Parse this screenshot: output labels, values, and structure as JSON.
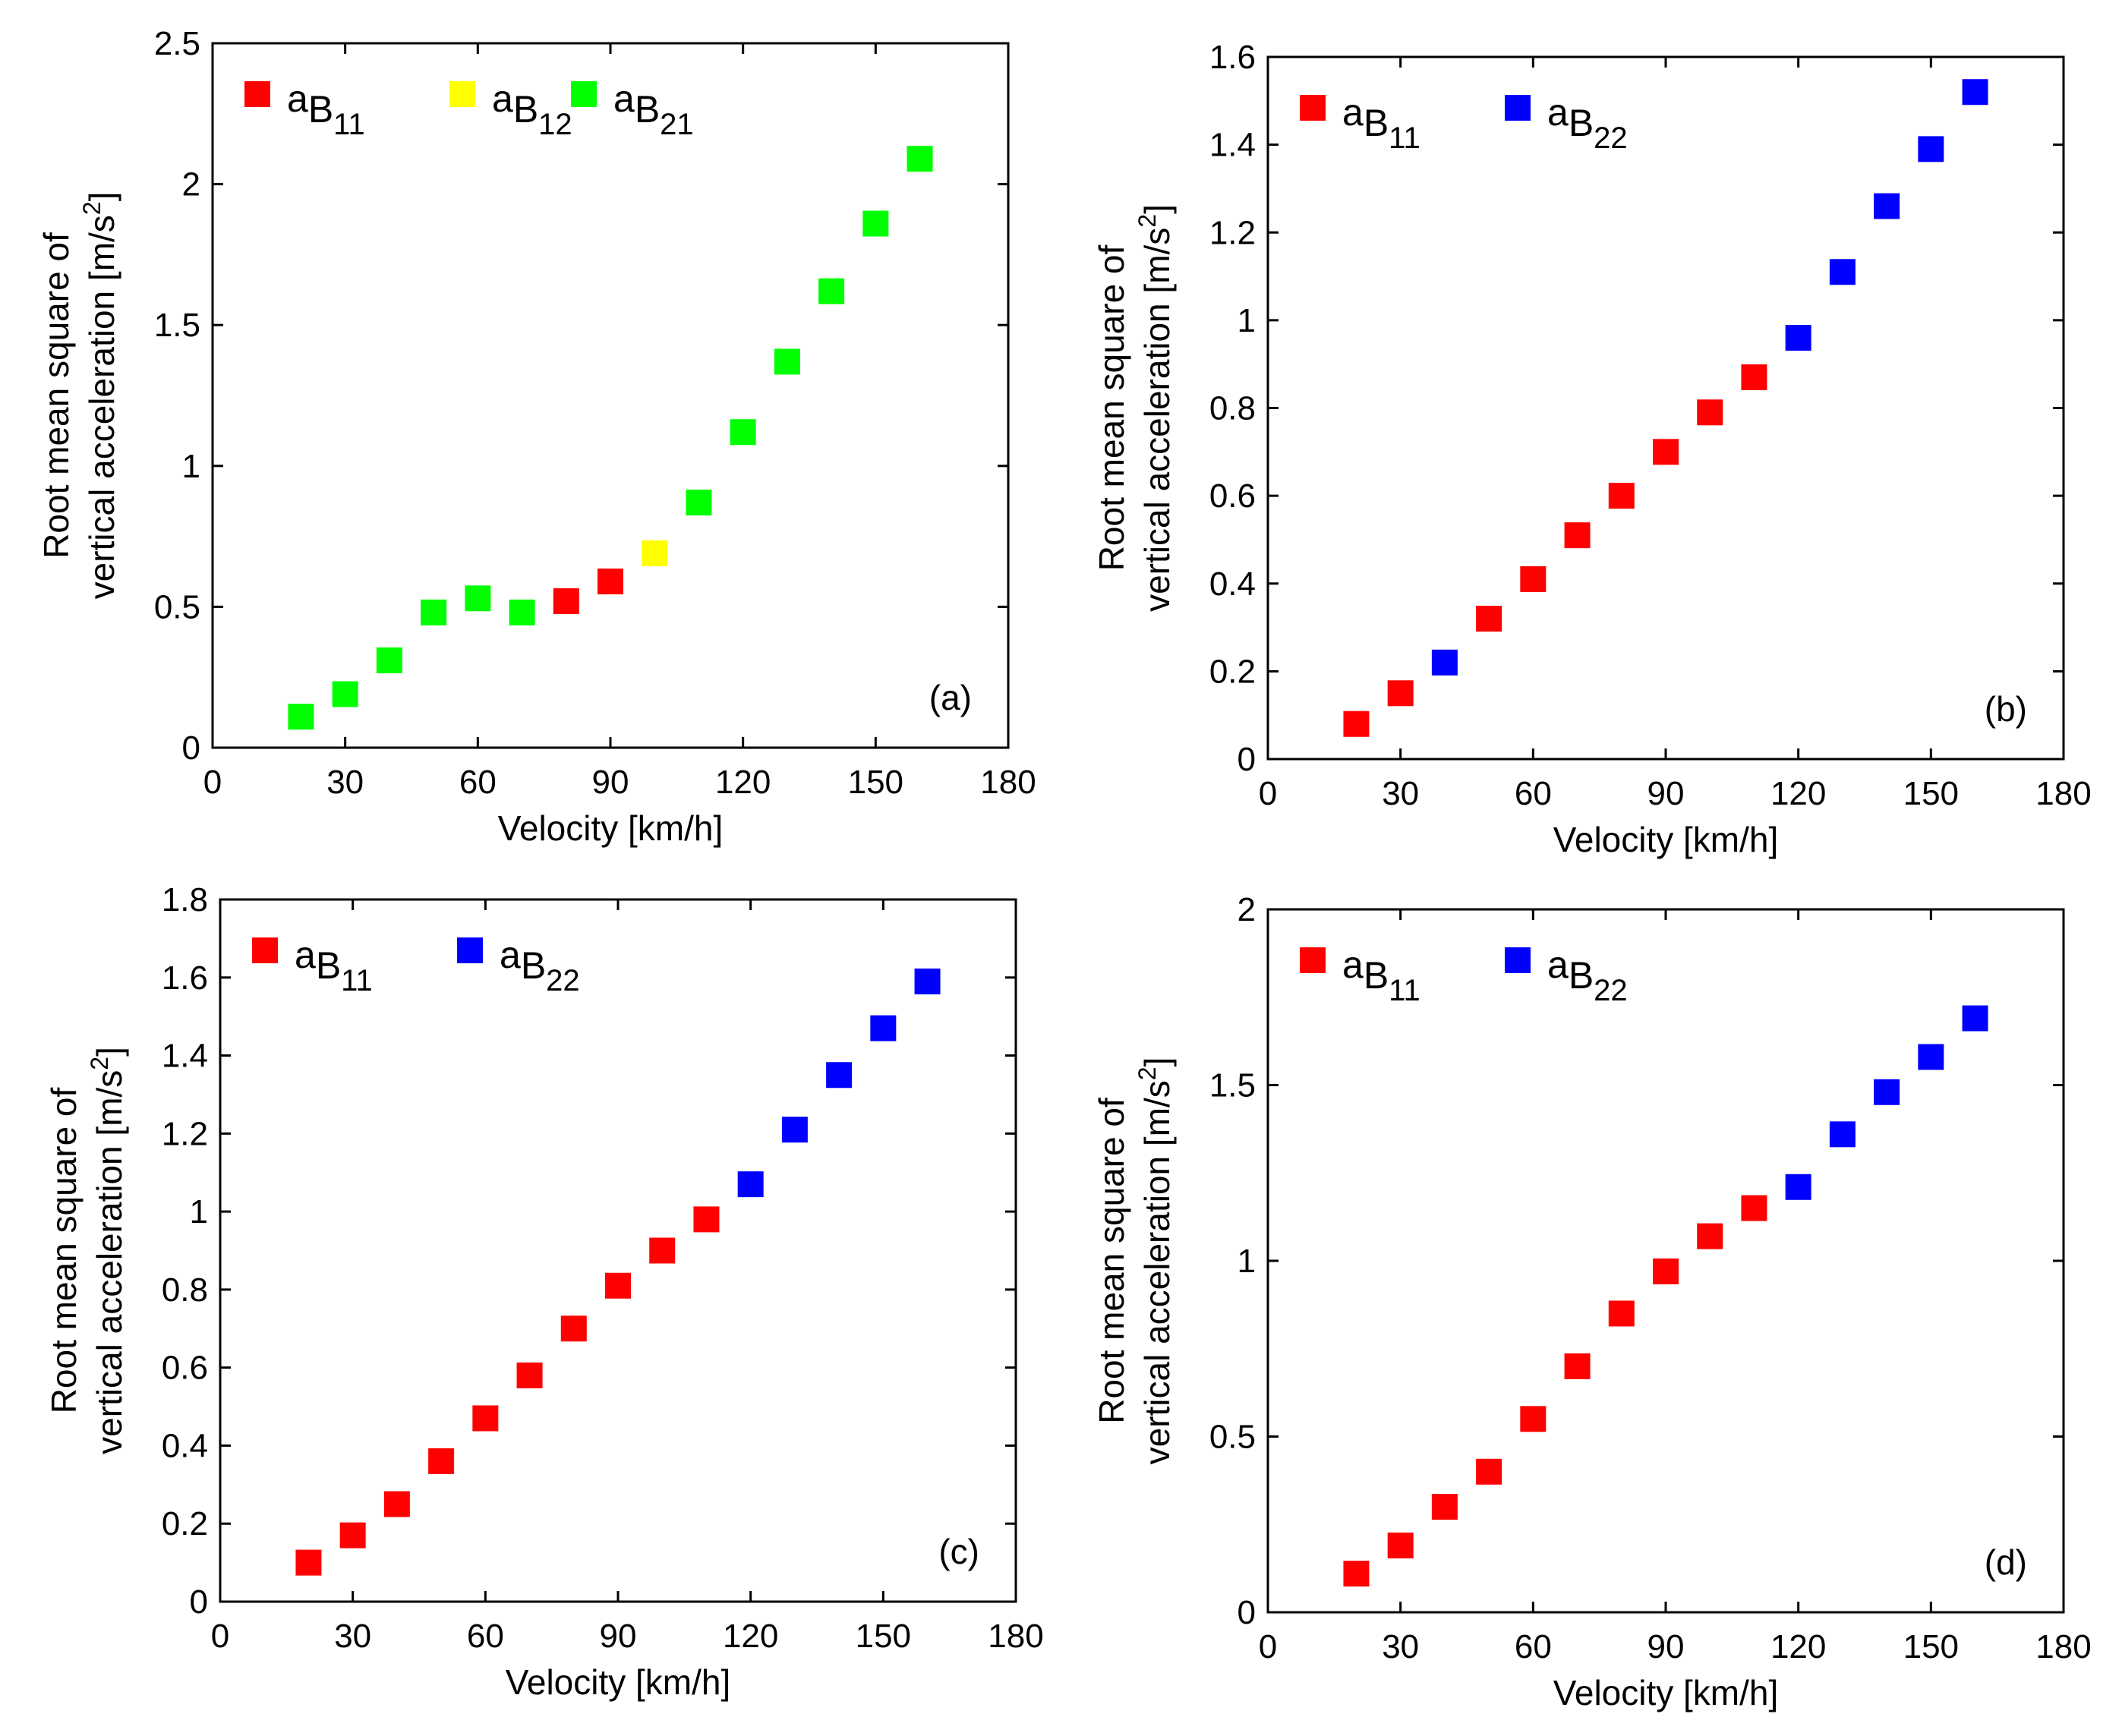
{
  "figure_title": "",
  "colors": {
    "aB11": "#ff0000",
    "aB12": "#ffff00",
    "aB21": "#00ff00",
    "aB22": "#0000ff",
    "axis": "#000000"
  },
  "chart_data": [
    {
      "type": "scatter",
      "panel_label": "(a)",
      "xlabel": "Velocity [km/h]",
      "ylabel_line1": "Root mean square of",
      "ylabel_line2": "vertical acceleration [m/s",
      "ylabel_exp": "2",
      "ylabel_end": "]",
      "xlim": [
        0,
        180
      ],
      "ylim": [
        0,
        2.5
      ],
      "xticks": [
        0,
        30,
        60,
        90,
        120,
        150,
        180
      ],
      "yticks": [
        0,
        0.5,
        1,
        1.5,
        2,
        2.5
      ],
      "ytick_labels": [
        "0",
        "0.5",
        "1",
        "1.5",
        "2",
        "2.5"
      ],
      "legend_position": "top-left",
      "series": [
        {
          "name": "aB11",
          "base": "a",
          "sub1": "B",
          "sub2": "11",
          "color": "#ff0000",
          "x": [
            80,
            90
          ],
          "y": [
            0.52,
            0.59
          ]
        },
        {
          "name": "aB12",
          "base": "a",
          "sub1": "B",
          "sub2": "12",
          "color": "#ffff00",
          "x": [
            100
          ],
          "y": [
            0.69
          ]
        },
        {
          "name": "aB21",
          "base": "a",
          "sub1": "B",
          "sub2": "21",
          "color": "#00ff00",
          "x": [
            20,
            30,
            40,
            50,
            60,
            70,
            110,
            120,
            130,
            140,
            150,
            160
          ],
          "y": [
            0.11,
            0.19,
            0.31,
            0.48,
            0.53,
            0.48,
            0.87,
            1.12,
            1.37,
            1.62,
            1.86,
            2.09
          ]
        }
      ]
    },
    {
      "type": "scatter",
      "panel_label": "(b)",
      "xlabel": "Velocity [km/h]",
      "ylabel_line1": "Root mean square of",
      "ylabel_line2": "vertical acceleration [m/s",
      "ylabel_exp": "2",
      "ylabel_end": "]",
      "xlim": [
        0,
        180
      ],
      "ylim": [
        0,
        1.6
      ],
      "xticks": [
        0,
        30,
        60,
        90,
        120,
        150,
        180
      ],
      "yticks": [
        0,
        0.2,
        0.4,
        0.6,
        0.8,
        1,
        1.2,
        1.4,
        1.6
      ],
      "ytick_labels": [
        "0",
        "0.2",
        "0.4",
        "0.6",
        "0.8",
        "1",
        "1.2",
        "1.4",
        "1.6"
      ],
      "legend_position": "top-left",
      "series": [
        {
          "name": "aB11",
          "base": "a",
          "sub1": "B",
          "sub2": "11",
          "color": "#ff0000",
          "x": [
            20,
            30,
            50,
            60,
            70,
            80,
            90,
            100,
            110
          ],
          "y": [
            0.08,
            0.15,
            0.32,
            0.41,
            0.51,
            0.6,
            0.7,
            0.79,
            0.87
          ]
        },
        {
          "name": "aB22",
          "base": "a",
          "sub1": "B",
          "sub2": "22",
          "color": "#0000ff",
          "x": [
            40,
            120,
            130,
            140,
            150,
            160
          ],
          "y": [
            0.22,
            0.96,
            1.11,
            1.26,
            1.39,
            1.52
          ]
        }
      ]
    },
    {
      "type": "scatter",
      "panel_label": "(c)",
      "xlabel": "Velocity [km/h]",
      "ylabel_line1": "Root mean square of",
      "ylabel_line2": "vertical acceleration [m/s",
      "ylabel_exp": "2",
      "ylabel_end": "]",
      "xlim": [
        0,
        180
      ],
      "ylim": [
        0,
        1.8
      ],
      "xticks": [
        0,
        30,
        60,
        90,
        120,
        150,
        180
      ],
      "yticks": [
        0,
        0.2,
        0.4,
        0.6,
        0.8,
        1,
        1.2,
        1.4,
        1.6,
        1.8
      ],
      "ytick_labels": [
        "0",
        "0.2",
        "0.4",
        "0.6",
        "0.8",
        "1",
        "1.2",
        "1.4",
        "1.6",
        "1.8"
      ],
      "legend_position": "top-left",
      "series": [
        {
          "name": "aB11",
          "base": "a",
          "sub1": "B",
          "sub2": "11",
          "color": "#ff0000",
          "x": [
            20,
            30,
            40,
            50,
            60,
            70,
            80,
            90,
            100,
            110
          ],
          "y": [
            0.1,
            0.17,
            0.25,
            0.36,
            0.47,
            0.58,
            0.7,
            0.81,
            0.9,
            0.98
          ]
        },
        {
          "name": "aB22",
          "base": "a",
          "sub1": "B",
          "sub2": "22",
          "color": "#0000ff",
          "x": [
            120,
            130,
            140,
            150,
            160
          ],
          "y": [
            1.07,
            1.21,
            1.35,
            1.47,
            1.59
          ]
        }
      ]
    },
    {
      "type": "scatter",
      "panel_label": "(d)",
      "xlabel": "Velocity [km/h]",
      "ylabel_line1": "Root mean square of",
      "ylabel_line2": "vertical acceleration [m/s",
      "ylabel_exp": "2",
      "ylabel_end": "]",
      "xlim": [
        0,
        180
      ],
      "ylim": [
        0,
        2
      ],
      "xticks": [
        0,
        30,
        60,
        90,
        120,
        150,
        180
      ],
      "yticks": [
        0,
        0.5,
        1,
        1.5,
        2
      ],
      "ytick_labels": [
        "0",
        "0.5",
        "1",
        "1.5",
        "2"
      ],
      "legend_position": "top-left",
      "series": [
        {
          "name": "aB11",
          "base": "a",
          "sub1": "B",
          "sub2": "11",
          "color": "#ff0000",
          "x": [
            20,
            30,
            40,
            50,
            60,
            70,
            80,
            90,
            100,
            110
          ],
          "y": [
            0.11,
            0.19,
            0.3,
            0.4,
            0.55,
            0.7,
            0.85,
            0.97,
            1.07,
            1.15
          ]
        },
        {
          "name": "aB22",
          "base": "a",
          "sub1": "B",
          "sub2": "22",
          "color": "#0000ff",
          "x": [
            120,
            130,
            140,
            150,
            160
          ],
          "y": [
            1.21,
            1.36,
            1.48,
            1.58,
            1.69
          ]
        }
      ]
    }
  ]
}
